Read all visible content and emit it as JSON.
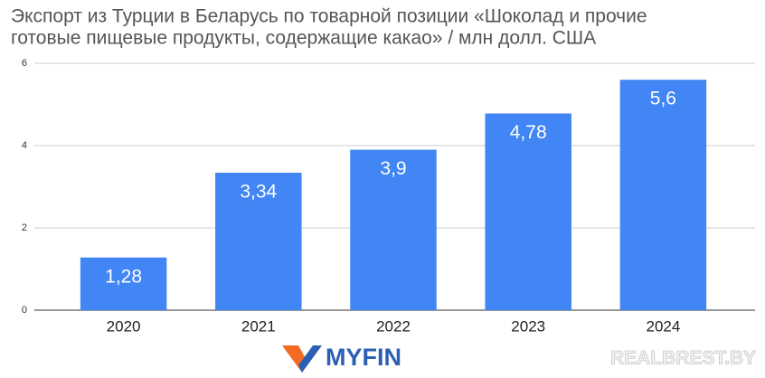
{
  "chart_data": {
    "type": "bar",
    "title": [
      "Экспорт из Турции в Беларусь по товарной позиции «Шоколад и прочие",
      "готовые пищевые продукты, содержащие какао» / млн долл. США"
    ],
    "categories": [
      "2020",
      "2021",
      "2022",
      "2023",
      "2024"
    ],
    "values": [
      1.28,
      3.34,
      3.9,
      4.78,
      5.6
    ],
    "value_labels": [
      "1,28",
      "3,34",
      "3,9",
      "4,78",
      "5,6"
    ],
    "color": "#4285f4",
    "ylim": [
      0,
      6
    ],
    "yticks": [
      0,
      2,
      4,
      6
    ],
    "grid": true
  },
  "logo": "MYFIN",
  "watermark": "REALBREST.BY"
}
